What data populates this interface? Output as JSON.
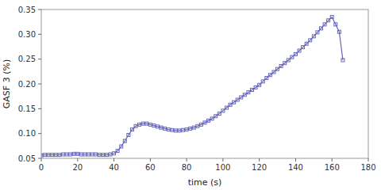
{
  "chart_data": {
    "type": "line",
    "xlabel": "time (s)",
    "ylabel": "GASF 3 (%)",
    "xlim": [
      0,
      180
    ],
    "ylim": [
      0.05,
      0.35
    ],
    "xticks": [
      0,
      20,
      40,
      60,
      80,
      100,
      120,
      140,
      160,
      180
    ],
    "yticks": [
      0.05,
      {
        "value": 0.1,
        "label": "0.10"
      },
      0.15,
      {
        "value": 0.2,
        "label": "0.20"
      },
      0.25,
      {
        "value": 0.3,
        "label": "0.30"
      },
      0.35
    ],
    "color": "#6666bb",
    "marker": "square",
    "grid": false,
    "x": [
      0,
      2,
      4,
      6,
      8,
      10,
      12,
      14,
      16,
      18,
      20,
      22,
      24,
      26,
      28,
      30,
      32,
      34,
      36,
      38,
      40,
      42,
      44,
      46,
      48,
      50,
      52,
      54,
      56,
      58,
      60,
      62,
      64,
      66,
      68,
      70,
      72,
      74,
      76,
      78,
      80,
      82,
      84,
      86,
      88,
      90,
      92,
      94,
      96,
      98,
      100,
      102,
      104,
      106,
      108,
      110,
      112,
      114,
      116,
      118,
      120,
      122,
      124,
      126,
      128,
      130,
      132,
      134,
      136,
      138,
      140,
      142,
      144,
      146,
      148,
      150,
      152,
      154,
      156,
      158,
      160,
      162,
      164,
      166
    ],
    "values": [
      0.056,
      0.057,
      0.057,
      0.057,
      0.057,
      0.057,
      0.058,
      0.058,
      0.058,
      0.059,
      0.059,
      0.058,
      0.058,
      0.058,
      0.058,
      0.058,
      0.057,
      0.057,
      0.057,
      0.058,
      0.06,
      0.065,
      0.074,
      0.085,
      0.097,
      0.108,
      0.115,
      0.118,
      0.12,
      0.12,
      0.118,
      0.116,
      0.114,
      0.112,
      0.11,
      0.108,
      0.107,
      0.106,
      0.106,
      0.107,
      0.108,
      0.11,
      0.112,
      0.115,
      0.118,
      0.122,
      0.126,
      0.13,
      0.135,
      0.14,
      0.146,
      0.152,
      0.158,
      0.163,
      0.168,
      0.173,
      0.178,
      0.183,
      0.188,
      0.193,
      0.198,
      0.205,
      0.212,
      0.218,
      0.224,
      0.23,
      0.236,
      0.242,
      0.248,
      0.254,
      0.26,
      0.267,
      0.274,
      0.281,
      0.288,
      0.296,
      0.304,
      0.312,
      0.32,
      0.328,
      0.335,
      0.32,
      0.305,
      0.248
    ]
  }
}
